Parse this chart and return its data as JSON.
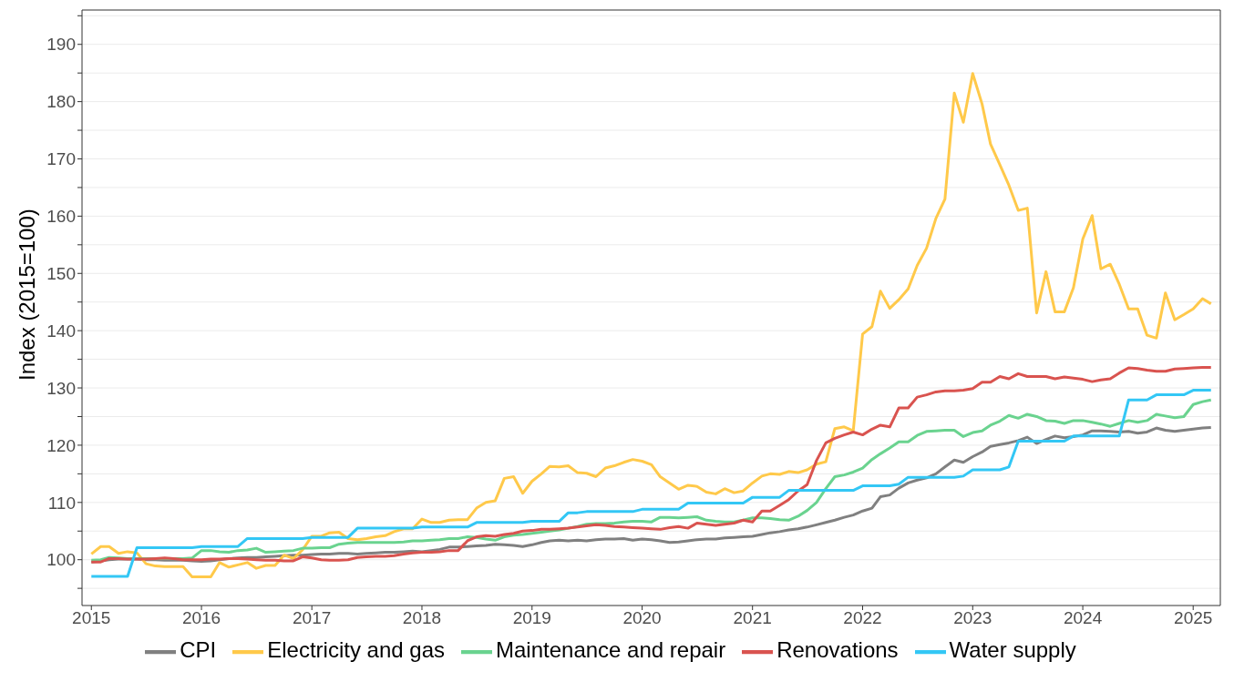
{
  "chart_data": {
    "type": "line",
    "ylabel": "Index (2015=100)",
    "x": [
      "2015-01",
      "2015-02",
      "2015-03",
      "2015-04",
      "2015-05",
      "2015-06",
      "2015-07",
      "2015-08",
      "2015-09",
      "2015-10",
      "2015-11",
      "2015-12",
      "2016-01",
      "2016-02",
      "2016-03",
      "2016-04",
      "2016-05",
      "2016-06",
      "2016-07",
      "2016-08",
      "2016-09",
      "2016-10",
      "2016-11",
      "2016-12",
      "2017-01",
      "2017-02",
      "2017-03",
      "2017-04",
      "2017-05",
      "2017-06",
      "2017-07",
      "2017-08",
      "2017-09",
      "2017-10",
      "2017-11",
      "2017-12",
      "2018-01",
      "2018-02",
      "2018-03",
      "2018-04",
      "2018-05",
      "2018-06",
      "2018-07",
      "2018-08",
      "2018-09",
      "2018-10",
      "2018-11",
      "2018-12",
      "2019-01",
      "2019-02",
      "2019-03",
      "2019-04",
      "2019-05",
      "2019-06",
      "2019-07",
      "2019-08",
      "2019-09",
      "2019-10",
      "2019-11",
      "2019-12",
      "2020-01",
      "2020-02",
      "2020-03",
      "2020-04",
      "2020-05",
      "2020-06",
      "2020-07",
      "2020-08",
      "2020-09",
      "2020-10",
      "2020-11",
      "2020-12",
      "2021-01",
      "2021-02",
      "2021-03",
      "2021-04",
      "2021-05",
      "2021-06",
      "2021-07",
      "2021-08",
      "2021-09",
      "2021-10",
      "2021-11",
      "2021-12",
      "2022-01",
      "2022-02",
      "2022-03",
      "2022-04",
      "2022-05",
      "2022-06",
      "2022-07",
      "2022-08",
      "2022-09",
      "2022-10",
      "2022-11",
      "2022-12",
      "2023-01",
      "2023-02",
      "2023-03",
      "2023-04",
      "2023-05",
      "2023-06",
      "2023-07",
      "2023-08",
      "2023-09",
      "2023-10",
      "2023-11",
      "2023-12",
      "2024-01",
      "2024-02",
      "2024-03",
      "2024-04",
      "2024-05",
      "2024-06",
      "2024-07",
      "2024-08",
      "2024-09",
      "2024-10",
      "2024-11",
      "2024-12",
      "2025-01",
      "2025-02",
      "2025-03"
    ],
    "series": [
      {
        "name": "CPI",
        "color": "#808080",
        "values": [
          99.6,
          99.8,
          100.0,
          100.1,
          100.1,
          100.1,
          100.0,
          100.0,
          99.9,
          99.9,
          99.9,
          99.8,
          99.7,
          99.8,
          100.0,
          100.2,
          100.3,
          100.4,
          100.4,
          100.5,
          100.6,
          100.7,
          100.8,
          100.8,
          100.9,
          101.0,
          101.0,
          101.1,
          101.1,
          101.0,
          101.1,
          101.2,
          101.3,
          101.3,
          101.4,
          101.5,
          101.4,
          101.6,
          101.8,
          102.2,
          102.2,
          102.3,
          102.4,
          102.5,
          102.7,
          102.6,
          102.5,
          102.3,
          102.6,
          103.0,
          103.3,
          103.4,
          103.3,
          103.4,
          103.3,
          103.5,
          103.6,
          103.6,
          103.7,
          103.4,
          103.6,
          103.5,
          103.3,
          103.0,
          103.1,
          103.3,
          103.5,
          103.6,
          103.6,
          103.8,
          103.9,
          104.0,
          104.1,
          104.4,
          104.7,
          104.9,
          105.2,
          105.4,
          105.7,
          106.1,
          106.5,
          106.9,
          107.4,
          107.8,
          108.5,
          109.0,
          111.0,
          111.3,
          112.5,
          113.4,
          113.9,
          114.3,
          115.0,
          116.2,
          117.4,
          117.0,
          118.0,
          118.8,
          119.8,
          120.1,
          120.4,
          120.8,
          121.4,
          120.3,
          121.0,
          121.6,
          121.3,
          121.5,
          121.8,
          122.5,
          122.5,
          122.4,
          122.3,
          122.4,
          122.1,
          122.3,
          123.0,
          122.6,
          122.4,
          122.6,
          122.8,
          123.0,
          123.1
        ]
      },
      {
        "name": "Electricity and gas",
        "color": "#ffc94a",
        "values": [
          101.0,
          102.3,
          102.3,
          101.1,
          101.4,
          101.2,
          99.3,
          98.9,
          98.8,
          98.8,
          98.8,
          97.0,
          97.0,
          97.0,
          99.5,
          98.7,
          99.1,
          99.5,
          98.5,
          99.0,
          99.0,
          100.8,
          100.2,
          101.7,
          104.1,
          104.1,
          104.7,
          104.8,
          103.7,
          103.5,
          103.7,
          104.0,
          104.2,
          104.9,
          105.4,
          105.4,
          107.1,
          106.5,
          106.5,
          106.9,
          107.0,
          107.0,
          109.0,
          110.0,
          110.3,
          114.2,
          114.5,
          111.6,
          113.7,
          115.0,
          116.3,
          116.2,
          116.4,
          115.2,
          115.1,
          114.5,
          116.0,
          116.4,
          117.0,
          117.5,
          117.2,
          116.6,
          114.5,
          113.4,
          112.3,
          113.0,
          112.8,
          111.8,
          111.5,
          112.4,
          111.7,
          112.0,
          113.4,
          114.6,
          115.0,
          114.9,
          115.4,
          115.2,
          115.7,
          116.7,
          117.1,
          122.9,
          123.2,
          122.5,
          139.4,
          140.7,
          146.9,
          143.9,
          145.4,
          147.3,
          151.4,
          154.4,
          159.6,
          163.0,
          181.5,
          176.4,
          184.9,
          179.6,
          172.6,
          169.0,
          165.4,
          161.0,
          161.4,
          143.1,
          150.3,
          143.3,
          143.3,
          147.5,
          156.0,
          160.1,
          150.8,
          151.6,
          148.1,
          143.8,
          143.8,
          139.2,
          138.7,
          146.6,
          141.9,
          142.8,
          143.8,
          145.6,
          144.7
        ]
      },
      {
        "name": "Maintenance and repair",
        "color": "#6ad38f",
        "values": [
          99.9,
          100.0,
          100.4,
          100.3,
          100.2,
          100.2,
          100.2,
          100.2,
          100.2,
          100.2,
          100.2,
          100.3,
          101.6,
          101.6,
          101.4,
          101.3,
          101.6,
          101.7,
          102.0,
          101.3,
          101.4,
          101.5,
          101.6,
          102.0,
          102.0,
          102.1,
          102.1,
          102.7,
          102.9,
          103.0,
          103.0,
          103.0,
          103.0,
          103.0,
          103.1,
          103.3,
          103.3,
          103.4,
          103.5,
          103.7,
          103.7,
          104.0,
          103.9,
          103.6,
          103.4,
          104.0,
          104.3,
          104.4,
          104.6,
          104.8,
          105.0,
          105.2,
          105.5,
          105.8,
          106.2,
          106.3,
          106.3,
          106.4,
          106.6,
          106.7,
          106.7,
          106.6,
          107.4,
          107.4,
          107.3,
          107.4,
          107.5,
          106.9,
          106.7,
          106.6,
          106.6,
          106.9,
          107.3,
          107.3,
          107.2,
          107.0,
          106.9,
          107.6,
          108.6,
          110.0,
          112.4,
          114.5,
          114.8,
          115.3,
          116.0,
          117.5,
          118.5,
          119.5,
          120.6,
          120.6,
          121.7,
          122.4,
          122.5,
          122.6,
          122.6,
          121.5,
          122.2,
          122.5,
          123.5,
          124.2,
          125.2,
          124.7,
          125.4,
          125.0,
          124.3,
          124.2,
          123.8,
          124.3,
          124.3,
          124.0,
          123.7,
          123.3,
          123.8,
          124.3,
          124.0,
          124.3,
          125.4,
          125.1,
          124.8,
          125.0,
          127.1,
          127.6,
          127.9
        ]
      },
      {
        "name": "Renovations",
        "color": "#d9534f",
        "values": [
          99.6,
          99.6,
          100.2,
          100.2,
          100.1,
          100.1,
          100.1,
          100.2,
          100.3,
          100.2,
          100.0,
          100.0,
          100.0,
          100.1,
          100.1,
          100.2,
          100.2,
          100.1,
          100.0,
          99.9,
          99.9,
          99.8,
          99.8,
          100.5,
          100.3,
          100.0,
          99.9,
          99.9,
          100.0,
          100.4,
          100.5,
          100.6,
          100.6,
          100.7,
          101.0,
          101.2,
          101.3,
          101.3,
          101.4,
          101.6,
          101.6,
          103.3,
          104.0,
          104.2,
          104.1,
          104.4,
          104.6,
          105.0,
          105.1,
          105.3,
          105.3,
          105.4,
          105.5,
          105.7,
          105.9,
          106.1,
          106.0,
          105.8,
          105.7,
          105.6,
          105.5,
          105.4,
          105.3,
          105.6,
          105.8,
          105.5,
          106.4,
          106.2,
          106.0,
          106.2,
          106.4,
          106.9,
          106.6,
          108.5,
          108.5,
          109.5,
          110.5,
          112.0,
          113.1,
          117.3,
          120.4,
          121.2,
          121.8,
          122.3,
          121.8,
          122.8,
          123.5,
          123.2,
          126.5,
          126.5,
          128.4,
          128.8,
          129.3,
          129.5,
          129.5,
          129.6,
          129.9,
          131.0,
          131.0,
          132.0,
          131.6,
          132.5,
          132.0,
          132.0,
          132.0,
          131.6,
          131.9,
          131.7,
          131.5,
          131.1,
          131.4,
          131.6,
          132.6,
          133.5,
          133.4,
          133.1,
          132.9,
          132.9,
          133.3,
          133.4,
          133.5,
          133.6,
          133.6
        ]
      },
      {
        "name": "Water supply",
        "color": "#33c7f5",
        "values": [
          97.1,
          97.1,
          97.1,
          97.1,
          97.1,
          102.1,
          102.1,
          102.1,
          102.1,
          102.1,
          102.1,
          102.1,
          102.3,
          102.3,
          102.3,
          102.3,
          102.3,
          103.7,
          103.7,
          103.7,
          103.7,
          103.7,
          103.7,
          103.7,
          103.9,
          103.9,
          103.9,
          103.9,
          103.9,
          105.5,
          105.5,
          105.5,
          105.5,
          105.5,
          105.5,
          105.5,
          105.7,
          105.7,
          105.7,
          105.7,
          105.7,
          105.7,
          106.5,
          106.5,
          106.5,
          106.5,
          106.5,
          106.5,
          106.7,
          106.7,
          106.7,
          106.7,
          108.2,
          108.2,
          108.4,
          108.4,
          108.4,
          108.4,
          108.4,
          108.4,
          108.8,
          108.8,
          108.8,
          108.8,
          108.8,
          109.9,
          109.9,
          109.9,
          109.9,
          109.9,
          109.9,
          109.9,
          110.9,
          110.9,
          110.9,
          110.9,
          112.1,
          112.1,
          112.1,
          112.1,
          112.1,
          112.1,
          112.1,
          112.1,
          112.9,
          112.9,
          112.9,
          112.9,
          113.2,
          114.4,
          114.4,
          114.4,
          114.4,
          114.4,
          114.4,
          114.6,
          115.7,
          115.7,
          115.7,
          115.7,
          116.2,
          120.7,
          120.7,
          120.7,
          120.7,
          120.7,
          120.7,
          121.6,
          121.6,
          121.6,
          121.6,
          121.6,
          121.6,
          127.9,
          127.9,
          127.9,
          128.8,
          128.8,
          128.8,
          128.8,
          129.6,
          129.6,
          129.6
        ]
      }
    ],
    "xlim": [
      "2014-12",
      "2025-04"
    ],
    "xticks": [
      "2015",
      "2016",
      "2017",
      "2018",
      "2019",
      "2020",
      "2021",
      "2022",
      "2023",
      "2024",
      "2025"
    ],
    "ylim": [
      92,
      196
    ],
    "yticks": [
      {
        "value": 95,
        "label": null
      },
      100,
      {
        "value": 105,
        "label": null
      },
      110,
      {
        "value": 115,
        "label": null
      },
      120,
      {
        "value": 125,
        "label": null
      },
      130,
      {
        "value": 135,
        "label": null
      },
      140,
      {
        "value": 145,
        "label": null
      },
      150,
      {
        "value": 155,
        "label": null
      },
      160,
      {
        "value": 165,
        "label": null
      },
      170,
      {
        "value": 175,
        "label": null
      },
      180,
      {
        "value": 185,
        "label": null
      },
      190,
      {
        "value": 195,
        "label": null
      }
    ],
    "grid": "y",
    "legend": "bottom",
    "marker": "none",
    "line_style": "solid"
  }
}
